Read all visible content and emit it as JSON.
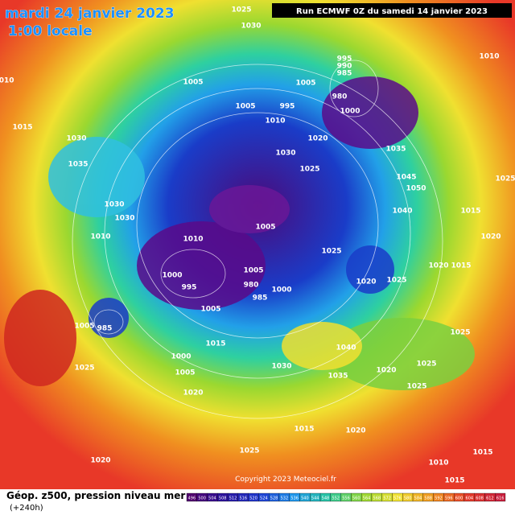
{
  "header": {
    "date": "mardi 24 janvier 2023",
    "time": "1:00 locale",
    "run": "Run ECMWF 0Z du samedi 14 janvier 2023"
  },
  "map": {
    "copyright": "Copyright 2023 Meteociel.fr",
    "isobar_labels": [
      "1025",
      "1030",
      "1010",
      "1010",
      "1015",
      "1005",
      "1005",
      "1005",
      "995",
      "990",
      "985",
      "980",
      "1000",
      "995",
      "1010",
      "1020",
      "1030",
      "1025",
      "1035",
      "1045",
      "1050",
      "1040",
      "1015",
      "1020",
      "1025",
      "1030",
      "1035",
      "1030",
      "1030",
      "1010",
      "1010",
      "1005",
      "1000",
      "995",
      "1005",
      "980",
      "985",
      "1000",
      "1020",
      "1025",
      "1025",
      "1005",
      "1005",
      "985",
      "1000",
      "1015",
      "1005",
      "1025",
      "1020",
      "1040",
      "1030",
      "1035",
      "1020",
      "1025",
      "1025",
      "1015",
      "1020",
      "1025",
      "1020",
      "1010",
      "1015",
      "1015",
      "1025",
      "1020",
      "1015"
    ]
  },
  "footer": {
    "title": "Géop. z500, pression niveau mer",
    "lead": "(+240h)",
    "scale_ticks": [
      "496",
      "500",
      "504",
      "508",
      "512",
      "516",
      "520",
      "524",
      "528",
      "532",
      "536",
      "540",
      "544",
      "548",
      "552",
      "556",
      "560",
      "564",
      "568",
      "572",
      "576",
      "580",
      "584",
      "588",
      "592",
      "596",
      "600",
      "604",
      "608",
      "612",
      "616"
    ]
  }
}
